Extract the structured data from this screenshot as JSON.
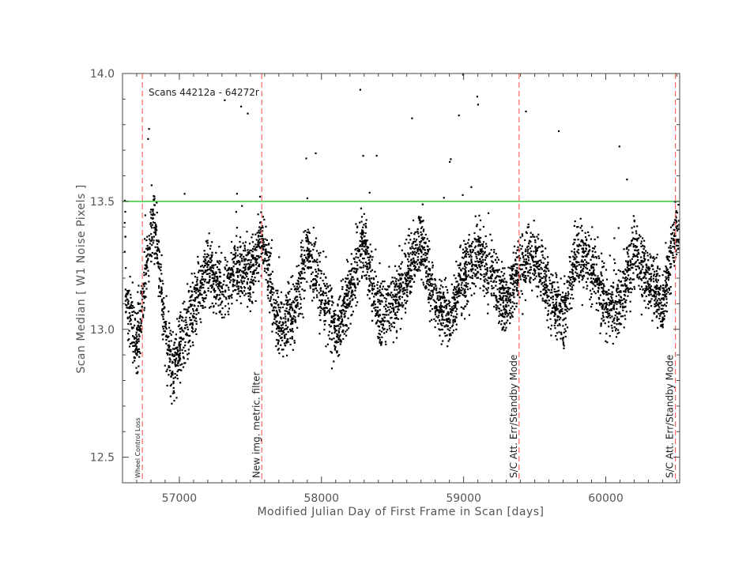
{
  "chart_data": {
    "type": "scatter",
    "title": "",
    "subtitle": "Scans 44212a - 64272r",
    "xlabel": "Modified Julian Day of First Frame in Scan [days]",
    "ylabel": "Scan Median [ W1 Noise Pixels ]",
    "xlim": [
      56600,
      60520
    ],
    "ylim": [
      12.4,
      14.0
    ],
    "x_ticks": [
      57000,
      58000,
      59000,
      60000
    ],
    "x_tick_labels": [
      "57000",
      "58000",
      "59000",
      "60000"
    ],
    "y_ticks": [
      12.5,
      13.0,
      13.5,
      14.0
    ],
    "y_tick_labels": [
      "12.5",
      "13.0",
      "13.5",
      "14.0"
    ],
    "grid": false,
    "point_color": "#000000",
    "reference_line": {
      "y": 13.5,
      "color": "#33cc33"
    },
    "vertical_markers": [
      {
        "x": 56740,
        "label": "Wheel Control Loss",
        "color": "#ff6666"
      },
      {
        "x": 57580,
        "label": "New img. metric. filter",
        "color": "#ff6666"
      },
      {
        "x": 59390,
        "label": "S/C Att. Err/Standby Mode",
        "color": "#ff6666"
      },
      {
        "x": 60490,
        "label": "S/C Att. Err/Standby Mode",
        "color": "#ff6666"
      }
    ],
    "series": [
      {
        "envelope_median_trend": {
          "x": [
            56620,
            56700,
            56760,
            56820,
            56900,
            56950,
            57100,
            57200,
            57300,
            57400,
            57500,
            57580,
            57700,
            57800,
            57900,
            58000,
            58100,
            58200,
            58300,
            58400,
            58500,
            58600,
            58700,
            58800,
            58900,
            59000,
            59100,
            59200,
            59300,
            59400,
            59500,
            59600,
            59700,
            59800,
            59900,
            60000,
            60100,
            60200,
            60300,
            60400,
            60500
          ],
          "y": [
            13.15,
            12.95,
            13.2,
            13.45,
            13.0,
            12.85,
            13.1,
            13.25,
            13.15,
            13.25,
            13.2,
            13.35,
            13.0,
            13.05,
            13.3,
            13.15,
            13.0,
            13.15,
            13.35,
            13.05,
            13.1,
            13.2,
            13.35,
            13.1,
            13.05,
            13.2,
            13.3,
            13.2,
            13.1,
            13.25,
            13.3,
            13.15,
            13.05,
            13.3,
            13.25,
            13.1,
            13.1,
            13.3,
            13.2,
            13.1,
            13.4
          ]
        }
      }
    ]
  }
}
